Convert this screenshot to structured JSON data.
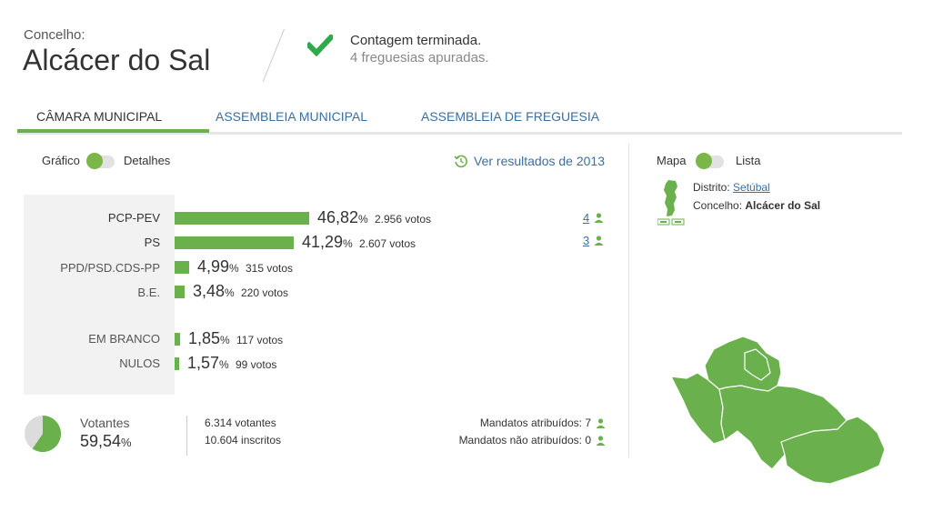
{
  "header": {
    "label": "Concelho:",
    "name": "Alcácer do Sal",
    "status_main": "Contagem terminada.",
    "status_sub": "4 freguesias apuradas."
  },
  "tabs": [
    {
      "label": "CÂMARA MUNICIPAL",
      "active": true
    },
    {
      "label": "ASSEMBLEIA MUNICIPAL",
      "active": false
    },
    {
      "label": "ASSEMBLEIA DE FREGUESIA",
      "active": false
    }
  ],
  "view_toggle": {
    "left": "Gráfico",
    "right": "Detalhes"
  },
  "history_link": "Ver resultados de 2013",
  "results": [
    {
      "party": "PCP-PEV",
      "pct": "46,82",
      "pct_value": 46.82,
      "votes": "2.956 votos",
      "seats": "4"
    },
    {
      "party": "PS",
      "pct": "41,29",
      "pct_value": 41.29,
      "votes": "2.607 votos",
      "seats": "3"
    },
    {
      "party": "PPD/PSD.CDS-PP",
      "pct": "4,99",
      "pct_value": 4.99,
      "votes": "315 votos",
      "seats": ""
    },
    {
      "party": "B.E.",
      "pct": "3,48",
      "pct_value": 3.48,
      "votes": "220 votos",
      "seats": ""
    },
    {
      "party": "EM BRANCO",
      "pct": "1,85",
      "pct_value": 1.85,
      "votes": "117 votos",
      "seats": ""
    },
    {
      "party": "NULOS",
      "pct": "1,57",
      "pct_value": 1.57,
      "votes": "99 votos",
      "seats": ""
    }
  ],
  "percent_sign": "%",
  "turnout": {
    "label": "Votantes",
    "pct": "59,54",
    "pct_value": 59.54,
    "voters": "6.314 votantes",
    "registered": "10.604 inscritos"
  },
  "mandates": {
    "assigned": "Mandatos atribuídos: 7",
    "unassigned": "Mandatos não atribuídos: 0"
  },
  "map_toggle": {
    "left": "Mapa",
    "right": "Lista"
  },
  "location": {
    "distrito_label": "Distrito:",
    "distrito": "Setúbal",
    "concelho_label": "Concelho:",
    "concelho": "Alcácer do Sal"
  },
  "colors": {
    "accent": "#6ab04c",
    "link": "#3a6fa0"
  }
}
